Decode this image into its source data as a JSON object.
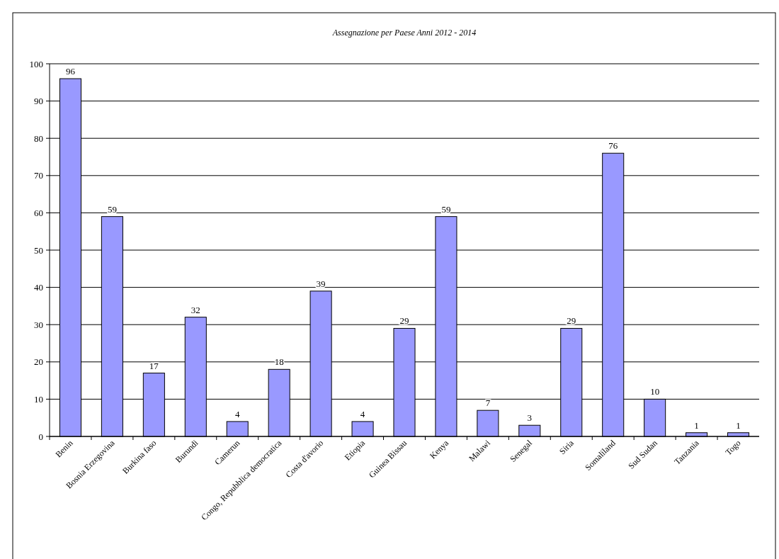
{
  "chart_data": {
    "type": "bar",
    "title": "Assegnazione per Paese Anni 2012 - 2014",
    "categories": [
      "Benin",
      "Bosnia Erzegovina",
      "Burkina faso",
      "Burundi",
      "Camerun",
      "Congo, Repubblica democratica",
      "Costa d'avorio",
      "Etiopia",
      "Guinea Bissau",
      "Kenya",
      "Malawi",
      "Senegal",
      "Siria",
      "Somaliland",
      "Sud Sudan",
      "Tanzania",
      "Togo"
    ],
    "values": [
      96,
      59,
      17,
      32,
      4,
      18,
      39,
      4,
      29,
      59,
      7,
      3,
      29,
      76,
      10,
      1,
      1
    ],
    "color": "#9999ff",
    "ylim": [
      0,
      100
    ],
    "yticks": [
      0,
      10,
      20,
      30,
      40,
      50,
      60,
      70,
      80,
      90,
      100
    ],
    "grid": "y",
    "data_labels": true
  }
}
